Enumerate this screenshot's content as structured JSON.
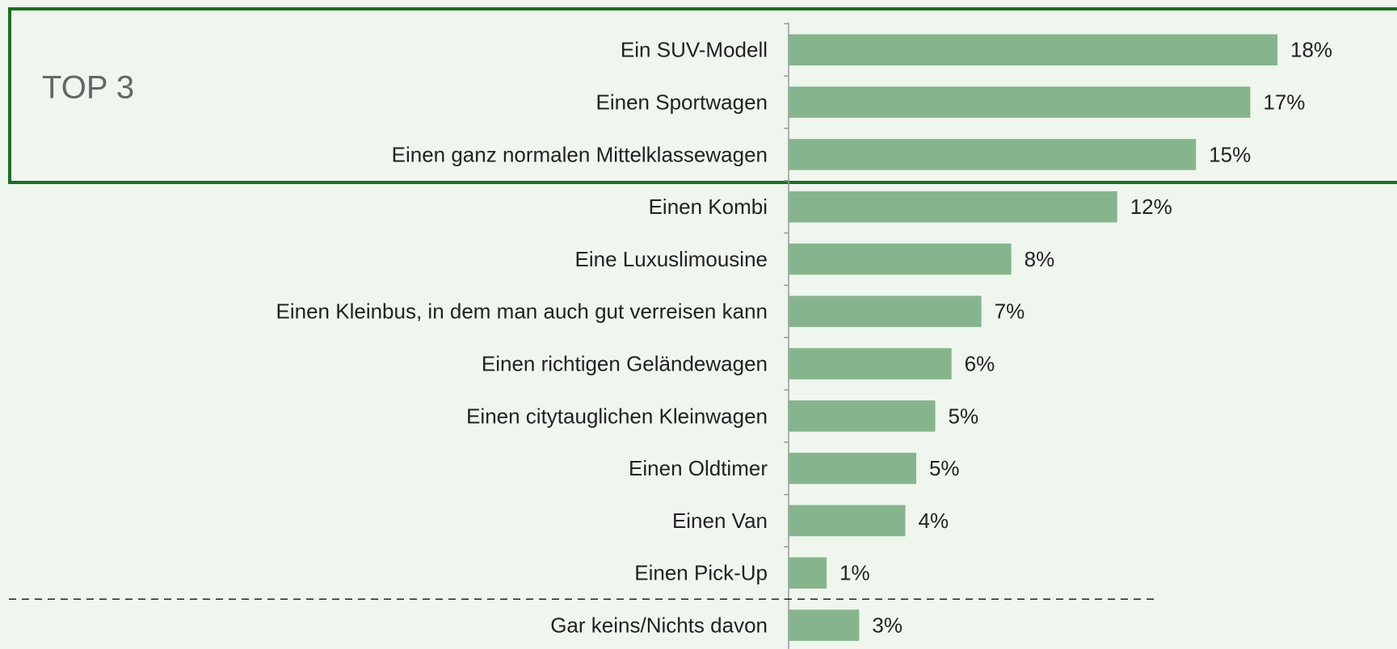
{
  "chart_data": {
    "type": "hbar",
    "annotation": "TOP 3",
    "categories": [
      "Ein SUV-Modell",
      "Einen Sportwagen",
      "Einen ganz normalen Mittelklassewagen",
      "Einen Kombi",
      "Eine Luxuslimousine",
      "Einen Kleinbus, in dem man auch gut verreisen kann",
      "Einen richtigen Geländewagen",
      "Einen citytauglichen Kleinwagen",
      "Einen Oldtimer",
      "Einen Van",
      "Einen Pick-Up",
      "Gar keins/Nichts davon"
    ],
    "values": [
      18,
      17,
      15,
      12.1,
      8.2,
      7.1,
      6,
      5.4,
      4.7,
      4.3,
      1.4,
      2.6
    ],
    "value_labels": [
      "18%",
      "17%",
      "15%",
      "12%",
      "8%",
      "7%",
      "6%",
      "5%",
      "5%",
      "4%",
      "1%",
      "3%"
    ],
    "color": "#86b48c"
  }
}
